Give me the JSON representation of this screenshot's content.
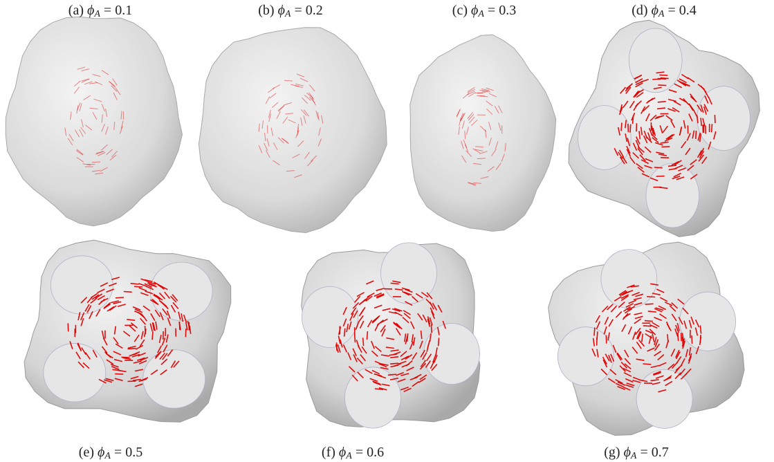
{
  "panels": [
    {
      "label": "(a)",
      "symbol": "ϕ",
      "subscript": "A",
      "relation": "=",
      "value": 0.1
    },
    {
      "label": "(b)",
      "symbol": "ϕ",
      "subscript": "A",
      "relation": "=",
      "value": 0.2
    },
    {
      "label": "(c)",
      "symbol": "ϕ",
      "subscript": "A",
      "relation": "=",
      "value": 0.3
    },
    {
      "label": "(d)",
      "symbol": "ϕ",
      "subscript": "A",
      "relation": "=",
      "value": 0.4
    },
    {
      "label": "(e)",
      "symbol": "ϕ",
      "subscript": "A",
      "relation": "=",
      "value": 0.5
    },
    {
      "label": "(f)",
      "symbol": "ϕ",
      "subscript": "A",
      "relation": "=",
      "value": 0.6
    },
    {
      "label": "(g)",
      "symbol": "ϕ",
      "subscript": "A",
      "relation": "=",
      "value": 0.7
    }
  ]
}
